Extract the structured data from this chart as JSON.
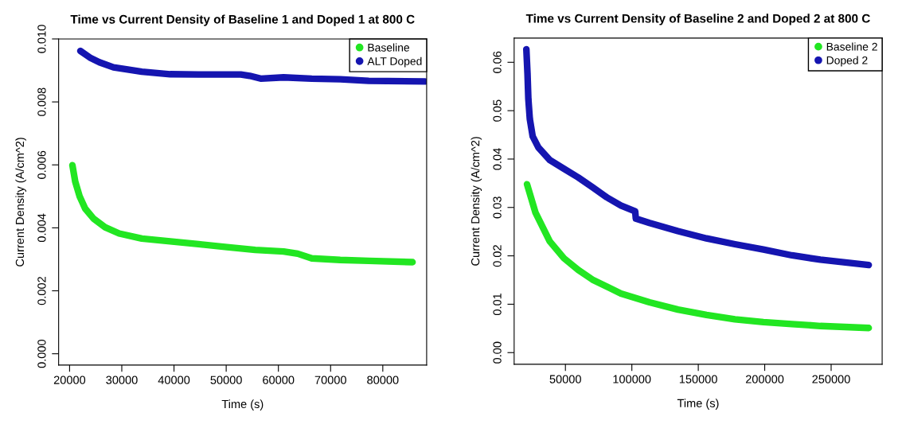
{
  "chart_data": [
    {
      "type": "line",
      "title": "Time vs Current Density of Baseline 1 and Doped 1 at 800 C",
      "xlabel": "Time (s)",
      "ylabel": "Current Density (A/cm^2)",
      "xlim": [
        17900,
        88400
      ],
      "xticks": [
        20000,
        30000,
        40000,
        50000,
        60000,
        70000,
        80000
      ],
      "ylim": [
        -0.00036,
        0.01
      ],
      "yticks": [
        {
          "value": 0,
          "label": "0.000"
        },
        {
          "value": 0.002,
          "label": "0.002"
        },
        {
          "value": 0.004,
          "label": "0.004"
        },
        {
          "value": 0.006,
          "label": "0.006"
        },
        {
          "value": 0.008,
          "label": "0.008"
        },
        {
          "value": 0.01,
          "label": "0.010"
        }
      ],
      "grid": false,
      "legend": "top right",
      "series": [
        {
          "name": "Baseline",
          "color": "#22e622",
          "x": [
            20540,
            21080,
            21900,
            22990,
            24600,
            26790,
            29500,
            33840,
            39270,
            44700,
            50140,
            55570,
            61000,
            63700,
            66400,
            71850,
            77300,
            85700
          ],
          "values": [
            0.00599,
            0.00547,
            0.00501,
            0.00461,
            0.00429,
            0.00402,
            0.00382,
            0.00366,
            0.00357,
            0.00348,
            0.00339,
            0.0033,
            0.00325,
            0.00318,
            0.00303,
            0.00298,
            0.00295,
            0.00291
          ]
        },
        {
          "name": "ALT Doped",
          "color": "#1515b0",
          "x": [
            22060,
            24070,
            25700,
            28400,
            31130,
            33840,
            39270,
            44700,
            52800,
            54500,
            56600,
            61000,
            66400,
            71850,
            77300,
            88100
          ],
          "values": [
            0.00962,
            0.00939,
            0.00926,
            0.0091,
            0.00903,
            0.00896,
            0.00888,
            0.00887,
            0.00887,
            0.00883,
            0.00874,
            0.00878,
            0.00874,
            0.00872,
            0.00867,
            0.00865
          ]
        }
      ]
    },
    {
      "type": "line",
      "title": "Time vs Current Density of Baseline 2 and Doped 2 at 800 C",
      "xlabel": "Time (s)",
      "ylabel": "Current Density (A/cm^2)",
      "xlim": [
        11400,
        288400
      ],
      "xticks": [
        50000,
        100000,
        150000,
        200000,
        250000
      ],
      "ylim": [
        -0.0024,
        0.065
      ],
      "yticks": [
        {
          "value": 0,
          "label": "0.00"
        },
        {
          "value": 0.01,
          "label": "0.01"
        },
        {
          "value": 0.02,
          "label": "0.02"
        },
        {
          "value": 0.03,
          "label": "0.03"
        },
        {
          "value": 0.04,
          "label": "0.04"
        },
        {
          "value": 0.05,
          "label": "0.05"
        },
        {
          "value": 0.06,
          "label": "0.06"
        }
      ],
      "grid": false,
      "legend": "top right",
      "series": [
        {
          "name": "Baseline 2",
          "color": "#22e622",
          "x": [
            21100,
            27500,
            38200,
            48900,
            59600,
            70300,
            91800,
            113300,
            134700,
            156200,
            177600,
            199000,
            220500,
            241900,
            278300
          ],
          "values": [
            0.0348,
            0.0289,
            0.023,
            0.0195,
            0.0171,
            0.0151,
            0.0122,
            0.0104,
            0.0089,
            0.0078,
            0.0069,
            0.0063,
            0.0059,
            0.0055,
            0.0051
          ]
        },
        {
          "name": "Doped 2",
          "color": "#1515b0",
          "x": [
            20600,
            21450,
            22100,
            23200,
            25350,
            29650,
            38200,
            48900,
            59600,
            70300,
            81100,
            91800,
            102500,
            103000,
            113300,
            134700,
            156200,
            177600,
            199000,
            220500,
            241900,
            278300
          ],
          "values": [
            0.0627,
            0.0577,
            0.0524,
            0.0483,
            0.0447,
            0.0424,
            0.0398,
            0.038,
            0.0362,
            0.0342,
            0.0321,
            0.0304,
            0.0292,
            0.0277,
            0.0268,
            0.0251,
            0.0236,
            0.0224,
            0.0213,
            0.0201,
            0.0192,
            0.0181
          ]
        }
      ]
    }
  ]
}
